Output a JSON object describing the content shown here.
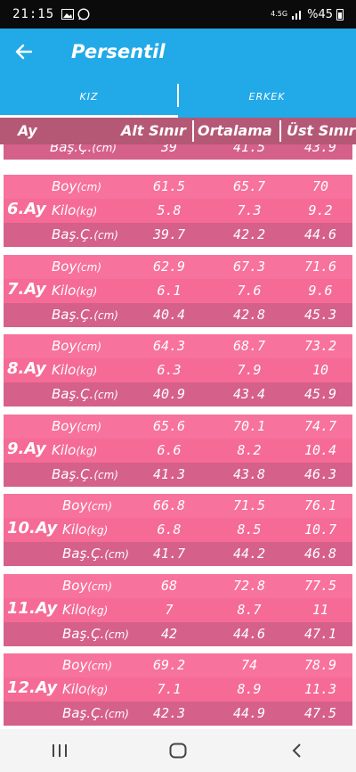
{
  "status": {
    "time": "21:15",
    "net": "4.5G",
    "battery": "%45"
  },
  "app": {
    "title": "Persentil"
  },
  "tabs": [
    {
      "label": "KIZ",
      "active": true
    },
    {
      "label": "ERKEK",
      "active": false
    }
  ],
  "header": {
    "age": "Ay",
    "low": "Alt Sınır",
    "avg": "Ortalama",
    "high": "Üst Sınır"
  },
  "row_labels": {
    "height": "Boy",
    "weight": "Kilo",
    "head": "Baş.Ç.",
    "u_cm": "(cm)",
    "u_kg": "(kg)"
  },
  "partial_row": {
    "label": "Baş.Ç.",
    "unit": "(cm)",
    "values": [
      "39",
      "41.5",
      "43.9"
    ]
  },
  "groups": [
    {
      "age": "6.Ay",
      "rows": [
        [
          "61.5",
          "65.7",
          "70"
        ],
        [
          "5.8",
          "7.3",
          "9.2"
        ],
        [
          "39.7",
          "42.2",
          "44.6"
        ]
      ]
    },
    {
      "age": "7.Ay",
      "rows": [
        [
          "62.9",
          "67.3",
          "71.6"
        ],
        [
          "6.1",
          "7.6",
          "9.6"
        ],
        [
          "40.4",
          "42.8",
          "45.3"
        ]
      ]
    },
    {
      "age": "8.Ay",
      "rows": [
        [
          "64.3",
          "68.7",
          "73.2"
        ],
        [
          "6.3",
          "7.9",
          "10"
        ],
        [
          "40.9",
          "43.4",
          "45.9"
        ]
      ]
    },
    {
      "age": "9.Ay",
      "rows": [
        [
          "65.6",
          "70.1",
          "74.7"
        ],
        [
          "6.6",
          "8.2",
          "10.4"
        ],
        [
          "41.3",
          "43.8",
          "46.3"
        ]
      ]
    },
    {
      "age": "10.Ay",
      "rows": [
        [
          "66.8",
          "71.5",
          "76.1"
        ],
        [
          "6.8",
          "8.5",
          "10.7"
        ],
        [
          "41.7",
          "44.2",
          "46.8"
        ]
      ]
    },
    {
      "age": "11.Ay",
      "rows": [
        [
          "68",
          "72.8",
          "77.5"
        ],
        [
          "7",
          "8.7",
          "11"
        ],
        [
          "42",
          "44.6",
          "47.1"
        ]
      ]
    },
    {
      "age": "12.Ay",
      "rows": [
        [
          "69.2",
          "74",
          "78.9"
        ],
        [
          "7.1",
          "8.9",
          "11.3"
        ],
        [
          "42.3",
          "44.9",
          "47.5"
        ]
      ]
    }
  ],
  "colors": {
    "app_bar": "#22a9e8",
    "header": "#b45876",
    "row_light": "#f7729c",
    "row_dark": "#d5608a"
  }
}
